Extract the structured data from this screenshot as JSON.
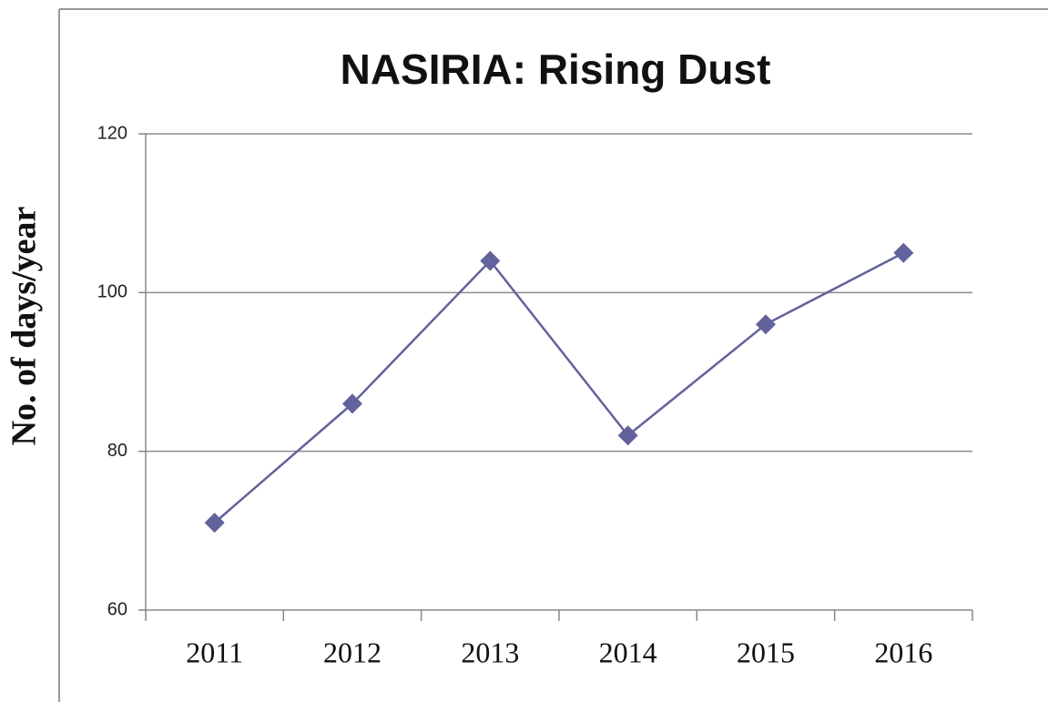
{
  "chart_data": {
    "type": "line",
    "title": "NASIRIA: Rising Dust",
    "y_label": "No. of days/year",
    "categories": [
      "2011",
      "2012",
      "2013",
      "2014",
      "2015",
      "2016"
    ],
    "series": [
      {
        "name": "Rising Dust",
        "color": "#62629c",
        "values": [
          71,
          86,
          104,
          82,
          96,
          105
        ]
      }
    ],
    "ylim": [
      60,
      120
    ],
    "yticks": [
      60,
      80,
      100,
      120
    ],
    "grid": true
  }
}
